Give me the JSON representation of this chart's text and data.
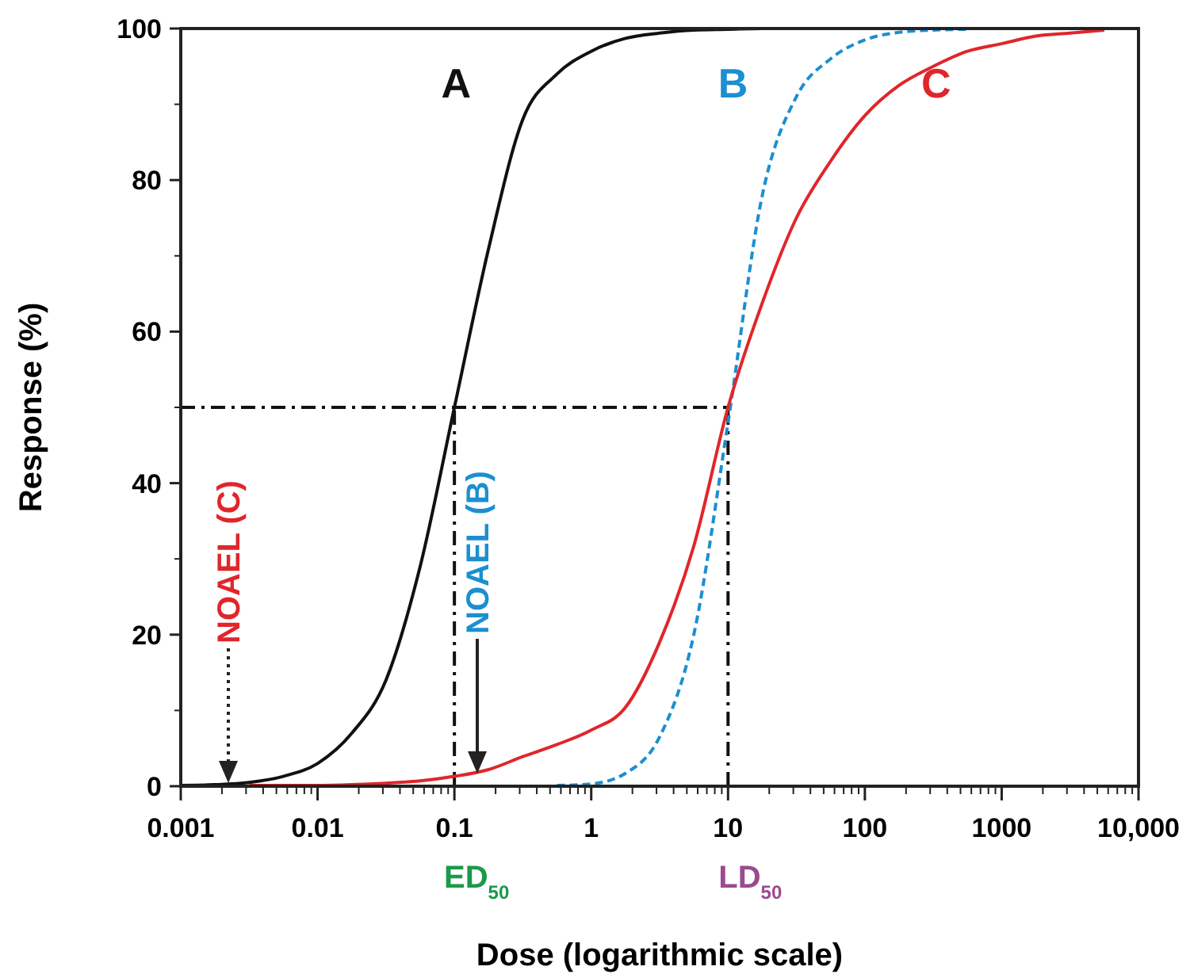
{
  "chart_data": {
    "type": "line",
    "xlabel": "Dose (logarithmic scale)",
    "ylabel": "Response (%)",
    "log": "x",
    "x": [
      0.001,
      0.00178,
      0.00316,
      0.00562,
      0.01,
      0.0178,
      0.0316,
      0.0562,
      0.1,
      0.178,
      0.316,
      0.562,
      1,
      1.78,
      3.16,
      5.62,
      10,
      17.8,
      31.6,
      56.2,
      100,
      178,
      316,
      562,
      1000,
      1780,
      3160,
      5620,
      10000
    ],
    "series": [
      {
        "name": "A",
        "color": "#111111",
        "line_style": "solid",
        "values": [
          0.1,
          0.2,
          0.5,
          1.3,
          3,
          7,
          14,
          29,
          50,
          71,
          88,
          94,
          97,
          98.7,
          99.4,
          99.8,
          99.9,
          100,
          100,
          100,
          100,
          100,
          100,
          100,
          100,
          100,
          100,
          100,
          100
        ]
      },
      {
        "name": "B",
        "color": "#1b8fd1",
        "line_style": "dashed",
        "values": [
          null,
          null,
          null,
          null,
          null,
          null,
          null,
          null,
          null,
          null,
          null,
          0.1,
          0.3,
          1.7,
          6.5,
          20,
          48,
          78,
          91,
          96,
          98.5,
          99.5,
          99.8,
          99.9,
          null,
          null,
          null,
          null,
          null
        ]
      },
      {
        "name": "C",
        "color": "#e0262b",
        "line_style": "solid",
        "values": [
          null,
          null,
          0.1,
          0.1,
          0.1,
          0.2,
          0.4,
          0.7,
          1.3,
          2.2,
          3.9,
          5.5,
          7.4,
          10.4,
          19,
          31.7,
          50,
          63.8,
          75,
          82.5,
          88.5,
          92.5,
          95,
          97,
          98,
          99,
          99.4,
          99.8,
          null
        ]
      }
    ],
    "xlim": [
      0.001,
      10000
    ],
    "xticks": [
      0.001,
      0.01,
      0.1,
      1,
      10,
      100,
      1000,
      {
        "value": 10000,
        "label": "10,000"
      }
    ],
    "ylim": [
      0,
      100
    ],
    "yticks": [
      0,
      20,
      40,
      60,
      80,
      100
    ],
    "grid": false,
    "legend": false,
    "ref_lines": [
      {
        "axis": "y",
        "value": 50,
        "line_style": "dashdot"
      },
      {
        "axis": "x",
        "value": 0.1,
        "label": "ED$_{50}$",
        "line_style": "dashdot"
      },
      {
        "axis": "x",
        "value": 10,
        "label": "LD$_{50}$",
        "line_style": "dashdot"
      }
    ],
    "annotations": [
      "NOAEL (C)",
      "NOAEL (B)"
    ]
  }
}
